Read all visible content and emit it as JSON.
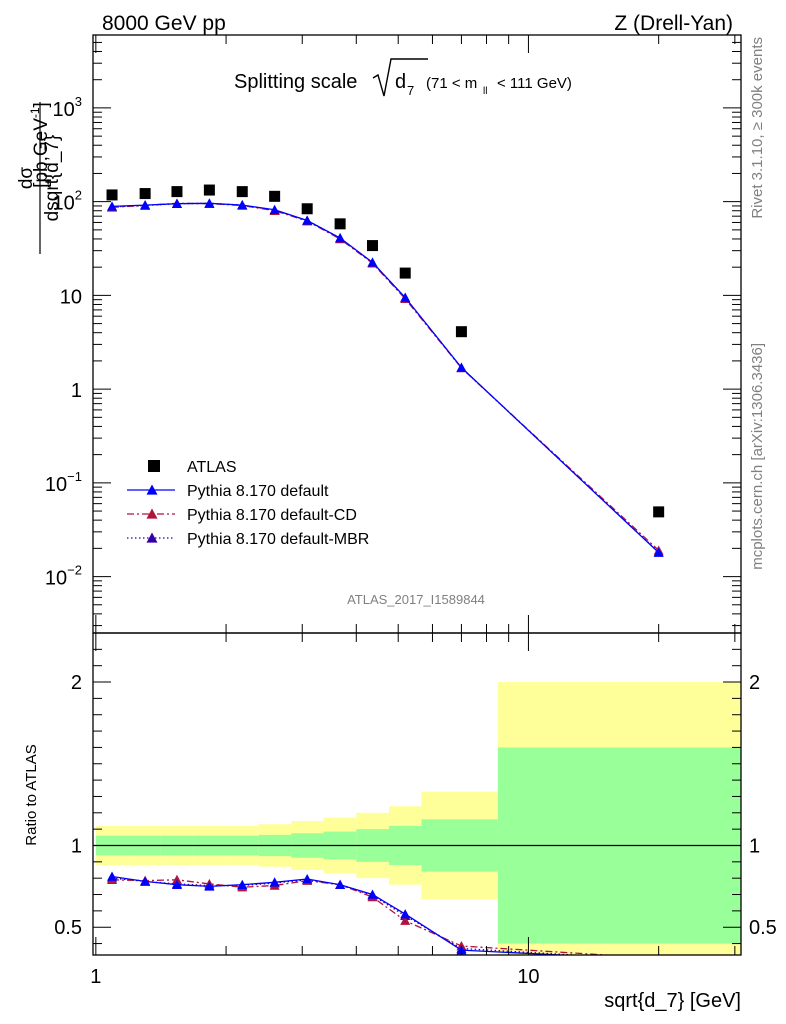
{
  "header": {
    "left": "8000 GeV pp",
    "right": "Z (Drell-Yan)"
  },
  "side": {
    "rivet": "Rivet 3.1.10, ≥ 300k events",
    "mcplots": "mcplots.cern.ch [arXiv:1306.3436]"
  },
  "chart_data": {
    "type": "scatter",
    "title_prefix": "Splitting scale",
    "title_symbol": "d",
    "title_sub": "7",
    "title_range": "(71 < m",
    "title_range_sub": "ll",
    "title_range_end": "< 111 GeV)",
    "analysis_id": "ATLAS_2017_I1589844",
    "xlabel": "sqrt{d_7} [GeV]",
    "ylabel_num": "dσ",
    "ylabel_den": "dsqrt{d_7}",
    "ylabel_unit": "[pb,GeV",
    "ylabel_unit_sup": "-1",
    "ylabel_unit_end": "]",
    "ratio_ylabel": "Ratio to ATLAS",
    "xscale": "log",
    "yscale": "log",
    "xlim": [
      0.985,
      31.0
    ],
    "ylim": [
      0.0025,
      6000
    ],
    "ratio_ylim": [
      0.33,
      2.3
    ],
    "x_ticks": [
      {
        "v": 1,
        "label": "1"
      },
      {
        "v": 10,
        "label": "10"
      }
    ],
    "y_ticks": [
      {
        "v": 0.01,
        "base": "10",
        "exp": "−2"
      },
      {
        "v": 0.1,
        "base": "10",
        "exp": "−1"
      },
      {
        "v": 1,
        "base": "1",
        "exp": ""
      },
      {
        "v": 10,
        "base": "10",
        "exp": ""
      },
      {
        "v": 100,
        "base": "10",
        "exp": "2"
      },
      {
        "v": 1000,
        "base": "10",
        "exp": "3"
      }
    ],
    "ratio_ticks": [
      {
        "v": 0.5,
        "label": "0.5"
      },
      {
        "v": 1,
        "label": "1"
      },
      {
        "v": 2,
        "label": "2"
      }
    ],
    "bin_edges": [
      1.0,
      1.19,
      1.41,
      1.68,
      2.0,
      2.38,
      2.83,
      3.36,
      4.0,
      4.76,
      5.66,
      8.5,
      31.0
    ],
    "x": [
      1.09,
      1.3,
      1.54,
      1.83,
      2.18,
      2.59,
      3.08,
      3.67,
      4.36,
      5.19,
      7.0,
      20.0
    ],
    "series": [
      {
        "name": "ATLAS",
        "style": "data",
        "color": "#000000",
        "values": [
          118,
          122,
          128,
          133,
          128,
          114,
          84,
          58,
          34,
          17.3,
          4.1,
          0.049
        ]
      },
      {
        "name": "Pythia 8.170 default",
        "style": "solid",
        "color": "#0000ff",
        "values": [
          89,
          92,
          95,
          96,
          92,
          82,
          63,
          41,
          22.5,
          9.5,
          1.7,
          0.018
        ]
      },
      {
        "name": "Pythia 8.170 default-CD",
        "style": "dashdot",
        "color": "#b0143c",
        "values": [
          87,
          91,
          96,
          95,
          91,
          80,
          62,
          40,
          22,
          9.2,
          1.68,
          0.019
        ]
      },
      {
        "name": "Pythia 8.170 default-MBR",
        "style": "dotted",
        "color": "#3300aa",
        "values": [
          88,
          91,
          95,
          96,
          92,
          81,
          63,
          41,
          22.3,
          9.4,
          1.69,
          0.0182
        ]
      }
    ],
    "ratio": {
      "band_inner": [
        0.06,
        0.06,
        0.06,
        0.06,
        0.06,
        0.065,
        0.075,
        0.085,
        0.1,
        0.12,
        0.16,
        0.6
      ],
      "band_outer": [
        0.12,
        0.12,
        0.12,
        0.12,
        0.12,
        0.13,
        0.15,
        0.17,
        0.2,
        0.24,
        0.33,
        1.0
      ],
      "band_inner_color": "#99ff99",
      "band_outer_color": "#ffff99",
      "series": [
        {
          "name": "Pythia 8.170 default",
          "values": [
            0.81,
            0.78,
            0.76,
            0.75,
            0.76,
            0.775,
            0.795,
            0.76,
            0.7,
            0.58,
            0.36,
            0.3
          ]
        },
        {
          "name": "Pythia 8.170 default-CD",
          "values": [
            0.79,
            0.785,
            0.79,
            0.765,
            0.745,
            0.755,
            0.785,
            0.76,
            0.685,
            0.54,
            0.385,
            0.31
          ]
        },
        {
          "name": "Pythia 8.170 default-MBR",
          "values": [
            0.8,
            0.78,
            0.765,
            0.755,
            0.755,
            0.77,
            0.79,
            0.76,
            0.695,
            0.57,
            0.37,
            0.3
          ]
        }
      ]
    }
  }
}
